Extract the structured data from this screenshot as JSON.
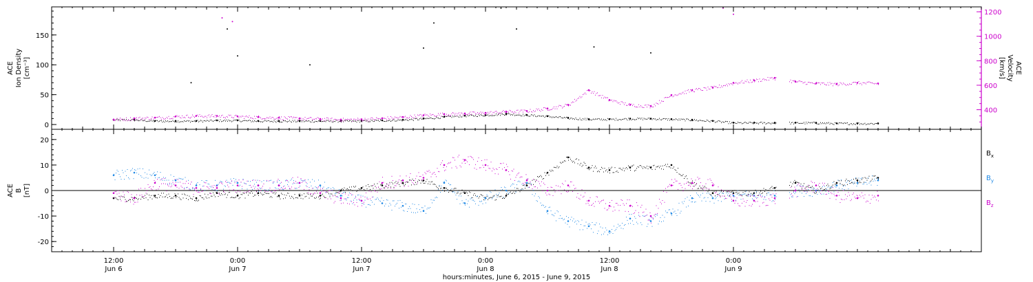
{
  "chart_data": [
    {
      "type": "scatter",
      "panel": "top",
      "ylabel_left": [
        "ACE",
        "Ion Density",
        "[cm⁻³]"
      ],
      "ylabel_right": [
        "ACE",
        "Velocity",
        "[km/s]"
      ],
      "ylim_left": [
        -8,
        197
      ],
      "yticks_left": [
        0,
        50,
        100,
        150
      ],
      "ylim_right": [
        240,
        1240
      ],
      "yticks_right": [
        400,
        600,
        800,
        1000,
        1200
      ],
      "series": [
        {
          "name": "Ion Density",
          "axis": "left",
          "color": "#000000",
          "x_hours": [
            6,
            8,
            10,
            12,
            14,
            16,
            18,
            20,
            22,
            24,
            26,
            28,
            30,
            32,
            34,
            36,
            38,
            40,
            42,
            44,
            46,
            48,
            50,
            52,
            54,
            56,
            58,
            60,
            62,
            64,
            66,
            68,
            70,
            72,
            74,
            76,
            78,
            80
          ],
          "values": [
            8,
            8,
            6,
            6,
            6,
            7,
            7,
            6,
            6,
            6,
            6,
            6,
            6,
            7,
            8,
            10,
            13,
            15,
            16,
            18,
            16,
            14,
            11,
            9,
            9,
            10,
            10,
            9,
            8,
            6,
            3,
            3,
            3,
            3,
            3,
            2,
            2,
            2
          ]
        },
        {
          "name": "Velocity",
          "axis": "right",
          "color": "#cc00cc",
          "x_hours": [
            6,
            8,
            10,
            12,
            14,
            16,
            18,
            20,
            22,
            24,
            26,
            28,
            30,
            32,
            34,
            36,
            38,
            40,
            42,
            44,
            46,
            48,
            50,
            52,
            54,
            56,
            58,
            60,
            62,
            64,
            66,
            68,
            70,
            72,
            74,
            76,
            78,
            80
          ],
          "values": [
            320,
            330,
            335,
            345,
            350,
            350,
            345,
            340,
            335,
            330,
            325,
            320,
            322,
            330,
            340,
            355,
            365,
            370,
            375,
            385,
            390,
            410,
            440,
            560,
            480,
            440,
            430,
            520,
            560,
            580,
            620,
            640,
            660,
            630,
            615,
            610,
            620,
            615
          ]
        }
      ],
      "spike_points": [
        {
          "x": 17.0,
          "y": 160,
          "axis": "left",
          "color": "#000000"
        },
        {
          "x": 18.0,
          "y": 115,
          "axis": "left",
          "color": "#000000"
        },
        {
          "x": 13.5,
          "y": 70,
          "axis": "left",
          "color": "#000000"
        },
        {
          "x": 25.0,
          "y": 100,
          "axis": "left",
          "color": "#000000"
        },
        {
          "x": 36.0,
          "y": 128,
          "axis": "left",
          "color": "#000000"
        },
        {
          "x": 37.0,
          "y": 170,
          "axis": "left",
          "color": "#000000"
        },
        {
          "x": 43.5,
          "y": 195,
          "axis": "left",
          "color": "#000000"
        },
        {
          "x": 45.0,
          "y": 160,
          "axis": "left",
          "color": "#000000"
        },
        {
          "x": 52.5,
          "y": 130,
          "axis": "left",
          "color": "#000000"
        },
        {
          "x": 58.0,
          "y": 120,
          "axis": "left",
          "color": "#000000"
        },
        {
          "x": 16.5,
          "y": 1150,
          "axis": "right",
          "color": "#cc00cc"
        },
        {
          "x": 17.5,
          "y": 1120,
          "axis": "right",
          "color": "#cc00cc"
        },
        {
          "x": 65.0,
          "y": 1230,
          "axis": "right",
          "color": "#cc00cc"
        },
        {
          "x": 66.0,
          "y": 1180,
          "axis": "right",
          "color": "#cc00cc"
        }
      ]
    },
    {
      "type": "scatter",
      "panel": "bottom",
      "ylabel": [
        "ACE",
        "B",
        "[nT]"
      ],
      "ylim": [
        -24,
        24
      ],
      "yticks": [
        -20,
        -10,
        0,
        10,
        20
      ],
      "zero_line": true,
      "legend_placement": "right",
      "series": [
        {
          "name": "B",
          "subscript": "x",
          "color": "#000000",
          "x_hours": [
            6,
            8,
            10,
            12,
            14,
            16,
            18,
            20,
            22,
            24,
            26,
            28,
            30,
            32,
            34,
            36,
            38,
            40,
            42,
            44,
            46,
            48,
            50,
            52,
            54,
            56,
            58,
            60,
            62,
            64,
            66,
            68,
            70,
            72,
            74,
            76,
            78,
            80
          ],
          "values": [
            -3,
            -3,
            -2,
            -2,
            -3,
            -1,
            -2,
            -1,
            -2,
            -2,
            -2,
            0,
            1,
            2,
            3,
            4,
            1,
            -1,
            -3,
            -2,
            2,
            7,
            13,
            9,
            8,
            9,
            9,
            10,
            3,
            -1,
            -1,
            -1,
            1,
            3,
            0,
            3,
            4,
            5
          ]
        },
        {
          "name": "B",
          "subscript": "y",
          "color": "#1e88e5",
          "x_hours": [
            6,
            8,
            10,
            12,
            14,
            16,
            18,
            20,
            22,
            24,
            26,
            28,
            30,
            32,
            34,
            36,
            38,
            40,
            42,
            44,
            46,
            48,
            50,
            52,
            54,
            56,
            58,
            60,
            62,
            64,
            66,
            68,
            70,
            72,
            74,
            76,
            78,
            80
          ],
          "values": [
            6,
            7,
            6,
            4,
            2,
            2,
            3,
            2,
            2,
            3,
            2,
            -2,
            -4,
            -5,
            -6,
            -8,
            3,
            -5,
            -3,
            0,
            3,
            -8,
            -12,
            -14,
            -16,
            -11,
            -12,
            -9,
            -3,
            -3,
            -2,
            -2,
            -2,
            0,
            0,
            2,
            3,
            4
          ]
        },
        {
          "name": "B",
          "subscript": "z",
          "color": "#cc00cc",
          "x_hours": [
            6,
            8,
            10,
            12,
            14,
            16,
            18,
            20,
            22,
            24,
            26,
            28,
            30,
            32,
            34,
            36,
            38,
            40,
            42,
            44,
            46,
            48,
            50,
            52,
            54,
            56,
            58,
            60,
            62,
            64,
            66,
            68,
            70,
            72,
            74,
            76,
            78,
            80
          ],
          "values": [
            -1,
            -3,
            3,
            2,
            1,
            1,
            2,
            2,
            2,
            3,
            -1,
            -3,
            -4,
            3,
            4,
            5,
            10,
            12,
            10,
            8,
            4,
            0,
            2,
            -4,
            -6,
            -6,
            -10,
            2,
            3,
            2,
            -4,
            -4,
            -3,
            0,
            2,
            -2,
            -3,
            -2
          ]
        }
      ]
    }
  ],
  "xaxis": {
    "xlim_hours": [
      0,
      90
    ],
    "ticks": [
      {
        "x": 6,
        "time": "12:00",
        "date": "Jun 6"
      },
      {
        "x": 18,
        "time": "0:00",
        "date": "Jun 7"
      },
      {
        "x": 30,
        "time": "12:00",
        "date": "Jun 7"
      },
      {
        "x": 42,
        "time": "0:00",
        "date": "Jun 8"
      },
      {
        "x": 54,
        "time": "12:00",
        "date": "Jun 8"
      },
      {
        "x": 66,
        "time": "0:00",
        "date": "Jun 9"
      }
    ],
    "label": "hours:minutes,  June  6, 2015 - June  9, 2015"
  }
}
